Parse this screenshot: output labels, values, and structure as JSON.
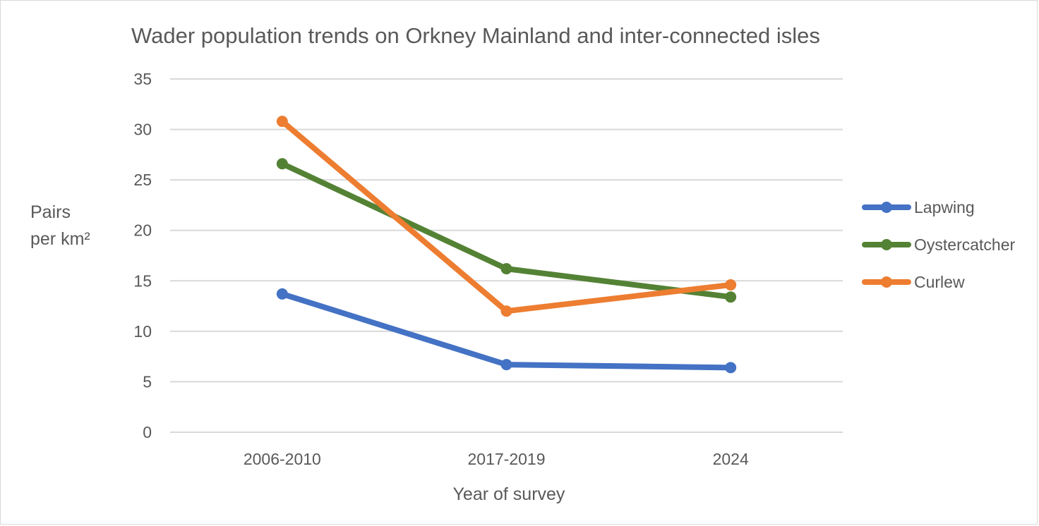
{
  "chart_data": {
    "type": "line",
    "title": "Wader population trends on Orkney Mainland and inter-connected isles",
    "xlabel": "Year of survey",
    "ylabel_lines": [
      "Pairs",
      "per km²"
    ],
    "categories": [
      "2006-2010",
      "2017-2019",
      "2024"
    ],
    "ylim": [
      0,
      35
    ],
    "yticks": [
      0,
      5,
      10,
      15,
      20,
      25,
      30,
      35
    ],
    "grid": true,
    "legend_position": "right",
    "series": [
      {
        "name": "Lapwing",
        "color": "#4472C4",
        "values": [
          13.7,
          6.7,
          6.4
        ]
      },
      {
        "name": "Oystercatcher",
        "color": "#548235",
        "values": [
          26.6,
          16.2,
          13.4
        ]
      },
      {
        "name": "Curlew",
        "color": "#ED7D31",
        "values": [
          30.8,
          12.0,
          14.6
        ]
      }
    ]
  }
}
